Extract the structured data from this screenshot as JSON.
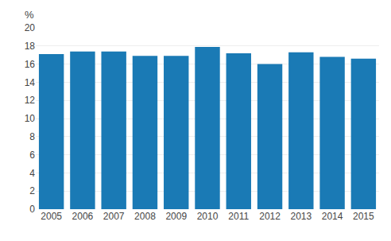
{
  "chart_data": {
    "type": "bar",
    "ylabel": "%",
    "categories": [
      "2005",
      "2006",
      "2007",
      "2008",
      "2009",
      "2010",
      "2011",
      "2012",
      "2013",
      "2014",
      "2015"
    ],
    "values": [
      17.1,
      17.4,
      17.4,
      16.9,
      16.9,
      17.9,
      17.2,
      16.0,
      17.3,
      16.8,
      16.6
    ],
    "color": "#1a7ab5",
    "ylim": [
      0,
      20
    ],
    "yticks": [
      0,
      2,
      4,
      6,
      8,
      10,
      12,
      14,
      16,
      18,
      20
    ],
    "grid": true
  }
}
